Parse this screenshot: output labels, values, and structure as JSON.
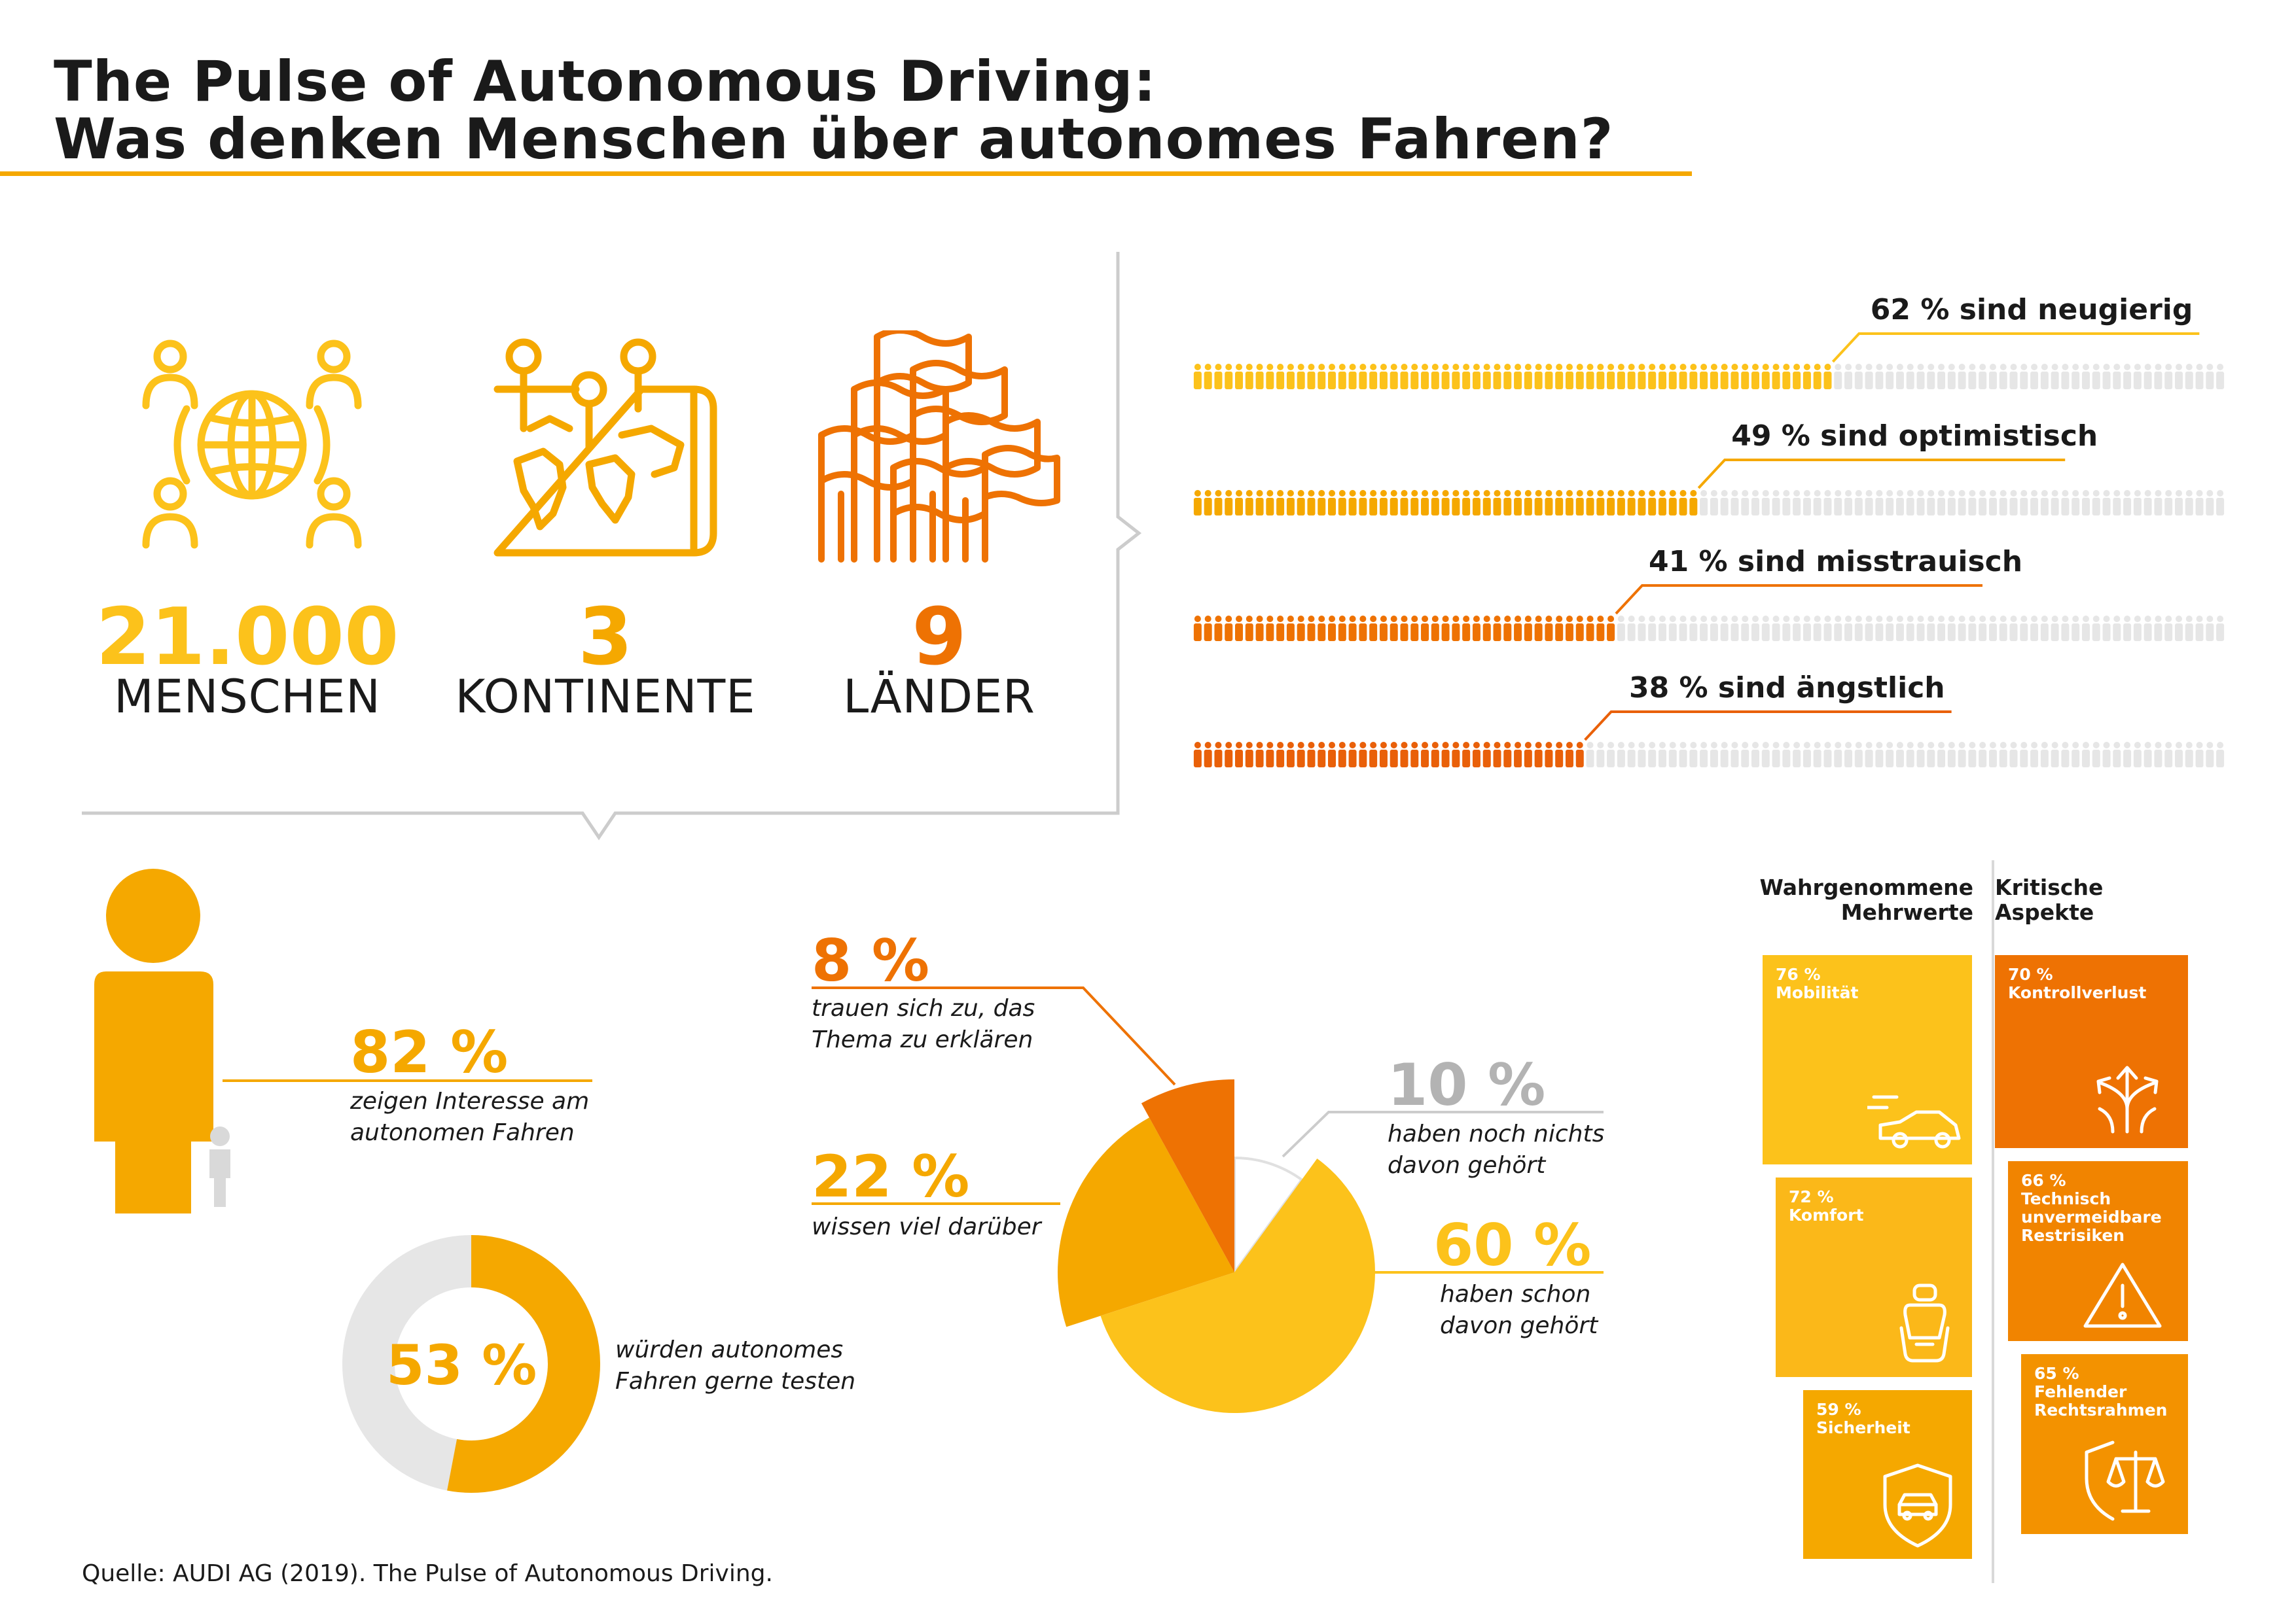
{
  "header": {
    "title_line1": "The Pulse of Autonomous Driving:",
    "title_line2": "Was denken Menschen über autonomes Fahren?"
  },
  "colors": {
    "yellow": "#fcc21b",
    "amber": "#f5a800",
    "orange": "#ee7203",
    "dark_orange": "#e96009",
    "light_grey": "#e6e6e6",
    "grey_text": "#b3b3b3"
  },
  "stats": [
    {
      "number": "21.000",
      "label": "MENSCHEN",
      "icon": "globe-people-icon",
      "color": "#fcc21b"
    },
    {
      "number": "3",
      "label": "KONTINENTE",
      "icon": "map-pins-icon",
      "color": "#f5a800"
    },
    {
      "number": "9",
      "label": "LÄNDER",
      "icon": "flags-icon",
      "color": "#ee7203"
    }
  ],
  "sentiment_bars": [
    {
      "label": "62 % sind neugierig",
      "percent": 62,
      "color": "#fcc21b"
    },
    {
      "label": "49 % sind optimistisch",
      "percent": 49,
      "color": "#f5a800"
    },
    {
      "label": "41 % sind misstrauisch",
      "percent": 41,
      "color": "#ee7203"
    },
    {
      "label": "38 % sind ängstlich",
      "percent": 38,
      "color": "#e96009"
    }
  ],
  "interest": {
    "pct": "82 %",
    "line1": "zeigen Interesse am",
    "line2": "autonomen Fahren",
    "icon": "person-icon"
  },
  "test_donut": {
    "pct": "53 %",
    "value": 53,
    "line1": "würden autonomes",
    "line2": "Fahren gerne testen"
  },
  "knowledge_pie": {
    "slices": [
      {
        "pct": "8 %",
        "value": 8,
        "line1": "trauen sich zu, das",
        "line2": "Thema zu erklären",
        "color": "#ee7203"
      },
      {
        "pct": "22 %",
        "value": 22,
        "line1": "wissen viel darüber",
        "line2": "",
        "color": "#f5a800"
      },
      {
        "pct": "60 %",
        "value": 60,
        "line1": "haben schon",
        "line2": "davon gehört",
        "color": "#fcc21b"
      },
      {
        "pct": "10 %",
        "value": 10,
        "line1": "haben noch nichts",
        "line2": "davon gehört",
        "color": "#b3b3b3"
      }
    ]
  },
  "perceived_benefits": {
    "heading_line1": "Wahrgenommene",
    "heading_line2": "Mehrwerte",
    "items": [
      {
        "pct": "76 %",
        "label": "Mobilität",
        "value": 76,
        "icon": "car-speed-icon"
      },
      {
        "pct": "72 %",
        "label": "Komfort",
        "value": 72,
        "icon": "car-seat-icon"
      },
      {
        "pct": "59 %",
        "label": "Sicherheit",
        "value": 59,
        "icon": "car-shield-icon"
      }
    ]
  },
  "critical_aspects": {
    "heading_line1": "Kritische",
    "heading_line2": "Aspekte",
    "items": [
      {
        "pct": "70 %",
        "lines": [
          "Kontrollverlust"
        ],
        "value": 70,
        "icon": "directions-icon"
      },
      {
        "pct": "66 %",
        "lines": [
          "Technisch",
          "unvermeidbare",
          "Restrisiken"
        ],
        "value": 66,
        "icon": "warning-icon"
      },
      {
        "pct": "65 %",
        "lines": [
          "Fehlender",
          "Rechtsrahmen"
        ],
        "value": 65,
        "icon": "justice-shield-icon"
      }
    ]
  },
  "source": "Quelle: AUDI AG (2019). The Pulse of Autonomous Driving."
}
